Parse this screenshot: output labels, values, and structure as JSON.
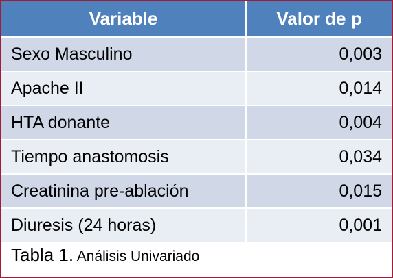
{
  "table": {
    "headers": {
      "variable": "Variable",
      "p_value": "Valor de p"
    },
    "rows": [
      {
        "variable": "Sexo Masculino",
        "p_value": "0,003"
      },
      {
        "variable": "Apache II",
        "p_value": "0,014"
      },
      {
        "variable": "HTA donante",
        "p_value": "0,004"
      },
      {
        "variable": "Tiempo anastomosis",
        "p_value": "0,034"
      },
      {
        "variable": "Creatinina pre-ablación",
        "p_value": "0,015"
      },
      {
        "variable": "Diuresis (24 horas)",
        "p_value": "0,001"
      }
    ]
  },
  "caption": {
    "label": "Tabla 1.",
    "text": " Análisis Univariado"
  },
  "colors": {
    "header_bg": "#4f81bd",
    "row_odd_bg": "#d0d8e8",
    "row_even_bg": "#e9edf4",
    "frame_border": "#a11c36"
  }
}
